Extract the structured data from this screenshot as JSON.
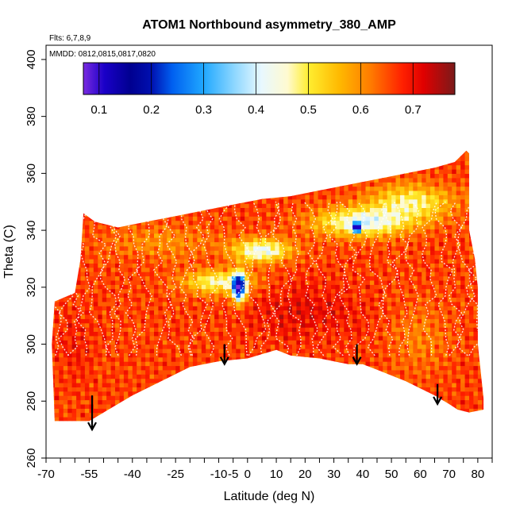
{
  "chart_data": {
    "type": "heatmap",
    "title": "ATOM1 Northbound asymmetry_380_AMP",
    "subtitle_flights": "Flts: 6,7,8,9",
    "subtitle_dates": "MMDD: 0812,0815,0817,0820",
    "xlabel": "Latitude (deg N)",
    "ylabel": "Theta (C)",
    "xlim": [
      -70,
      85
    ],
    "ylim": [
      260,
      405
    ],
    "x_major_ticks": [
      {
        "v": -70,
        "label": "-70"
      },
      {
        "v": -55,
        "label": "-55"
      },
      {
        "v": -40,
        "label": "-40"
      },
      {
        "v": -25,
        "label": "-25"
      },
      {
        "v": -10,
        "label": "-10"
      },
      {
        "v": -5,
        "label": "-5"
      },
      {
        "v": 0,
        "label": "0"
      },
      {
        "v": 10,
        "label": "10"
      },
      {
        "v": 20,
        "label": "20"
      },
      {
        "v": 30,
        "label": "30"
      },
      {
        "v": 40,
        "label": "40"
      },
      {
        "v": 50,
        "label": "50"
      },
      {
        "v": 60,
        "label": "60"
      },
      {
        "v": 70,
        "label": "70"
      },
      {
        "v": 80,
        "label": "80"
      }
    ],
    "x_minor_ticks": [
      -65,
      -60,
      -50,
      -45,
      -35,
      -30,
      -20,
      -15,
      5,
      15,
      25,
      35,
      45,
      55,
      65,
      75,
      85
    ],
    "y_ticks": [
      {
        "v": 260,
        "label": "260"
      },
      {
        "v": 280,
        "label": "280"
      },
      {
        "v": 300,
        "label": "300"
      },
      {
        "v": 320,
        "label": "320"
      },
      {
        "v": 340,
        "label": "340"
      },
      {
        "v": 360,
        "label": "360"
      },
      {
        "v": 380,
        "label": "380"
      },
      {
        "v": 400,
        "label": "400"
      }
    ],
    "colorbar": {
      "range": [
        0.07,
        0.78
      ],
      "ticks": [
        {
          "v": 0.1,
          "label": "0.1"
        },
        {
          "v": 0.2,
          "label": "0.2"
        },
        {
          "v": 0.3,
          "label": "0.3"
        },
        {
          "v": 0.4,
          "label": "0.4"
        },
        {
          "v": 0.5,
          "label": "0.5"
        },
        {
          "v": 0.6,
          "label": "0.6"
        },
        {
          "v": 0.7,
          "label": "0.7"
        }
      ],
      "stops": [
        {
          "v": 0.07,
          "color": "#7a2be0"
        },
        {
          "v": 0.11,
          "color": "#1a00c8"
        },
        {
          "v": 0.16,
          "color": "#000090"
        },
        {
          "v": 0.2,
          "color": "#0010b0"
        },
        {
          "v": 0.24,
          "color": "#0060f0"
        },
        {
          "v": 0.3,
          "color": "#20a8ff"
        },
        {
          "v": 0.36,
          "color": "#90d8ff"
        },
        {
          "v": 0.41,
          "color": "#e8f8ff"
        },
        {
          "v": 0.46,
          "color": "#fffad0"
        },
        {
          "v": 0.5,
          "color": "#ffee30"
        },
        {
          "v": 0.56,
          "color": "#ffb800"
        },
        {
          "v": 0.62,
          "color": "#ff7a00"
        },
        {
          "v": 0.68,
          "color": "#ff2000"
        },
        {
          "v": 0.72,
          "color": "#e00000"
        },
        {
          "v": 0.78,
          "color": "#7a1a1a"
        }
      ]
    },
    "top_boundary": [
      [
        -57,
        346
      ],
      [
        -53,
        343
      ],
      [
        -45,
        341
      ],
      [
        -35,
        343
      ],
      [
        -25,
        345
      ],
      [
        -15,
        347
      ],
      [
        -5,
        349
      ],
      [
        5,
        351
      ],
      [
        15,
        352
      ],
      [
        25,
        354
      ],
      [
        35,
        356
      ],
      [
        45,
        358
      ],
      [
        55,
        360
      ],
      [
        65,
        362
      ],
      [
        72,
        364
      ],
      [
        76,
        368
      ],
      [
        77,
        367
      ],
      [
        77,
        340
      ],
      [
        79,
        330
      ],
      [
        80,
        320
      ],
      [
        80,
        300
      ],
      [
        82,
        281
      ]
    ],
    "bottom_boundary": [
      [
        82,
        277
      ],
      [
        77,
        276
      ],
      [
        73,
        277
      ],
      [
        70,
        279
      ],
      [
        65,
        282
      ],
      [
        55,
        287
      ],
      [
        45,
        291
      ],
      [
        40,
        293
      ],
      [
        35,
        293
      ],
      [
        30,
        294
      ],
      [
        25,
        295
      ],
      [
        15,
        296
      ],
      [
        10,
        298
      ],
      [
        0,
        295
      ],
      [
        -10,
        294
      ],
      [
        -20,
        292
      ],
      [
        -30,
        287
      ],
      [
        -40,
        282
      ],
      [
        -50,
        276
      ],
      [
        -55,
        273
      ],
      [
        -60,
        273
      ],
      [
        -67,
        273
      ],
      [
        -68,
        300
      ],
      [
        -67,
        315
      ],
      [
        -60,
        318
      ],
      [
        -58,
        330
      ],
      [
        -57,
        346
      ]
    ],
    "value_field": {
      "base": 0.66,
      "features": [
        {
          "x": -3,
          "y": 320,
          "sx": 2.2,
          "sy": 5,
          "v": -0.5
        },
        {
          "x": -10,
          "y": 322,
          "sx": 12,
          "sy": 4,
          "v": -0.2
        },
        {
          "x": 5,
          "y": 333,
          "sx": 10,
          "sy": 4,
          "v": -0.24
        },
        {
          "x": 40,
          "y": 343,
          "sx": 16,
          "sy": 5,
          "v": -0.24
        },
        {
          "x": 38,
          "y": 341,
          "sx": 1.5,
          "sy": 1.5,
          "v": -0.45
        },
        {
          "x": 57,
          "y": 350,
          "sx": 14,
          "sy": 6,
          "v": -0.18
        },
        {
          "x": -30,
          "y": 336,
          "sx": 20,
          "sy": 6,
          "v": -0.06
        },
        {
          "x": 20,
          "y": 312,
          "sx": 20,
          "sy": 10,
          "v": 0.05
        },
        {
          "x": -60,
          "y": 300,
          "sx": 6,
          "sy": 12,
          "v": 0.03
        },
        {
          "x": 60,
          "y": 302,
          "sx": 10,
          "sy": 12,
          "v": -0.05
        }
      ]
    },
    "arrows": [
      {
        "x": -54,
        "y_top": 282,
        "y_bottom": 270
      },
      {
        "x": -8,
        "y_top": 300,
        "y_bottom": 293
      },
      {
        "x": 38,
        "y_top": 300,
        "y_bottom": 293
      },
      {
        "x": 66,
        "y_top": 286,
        "y_bottom": 279
      }
    ]
  }
}
